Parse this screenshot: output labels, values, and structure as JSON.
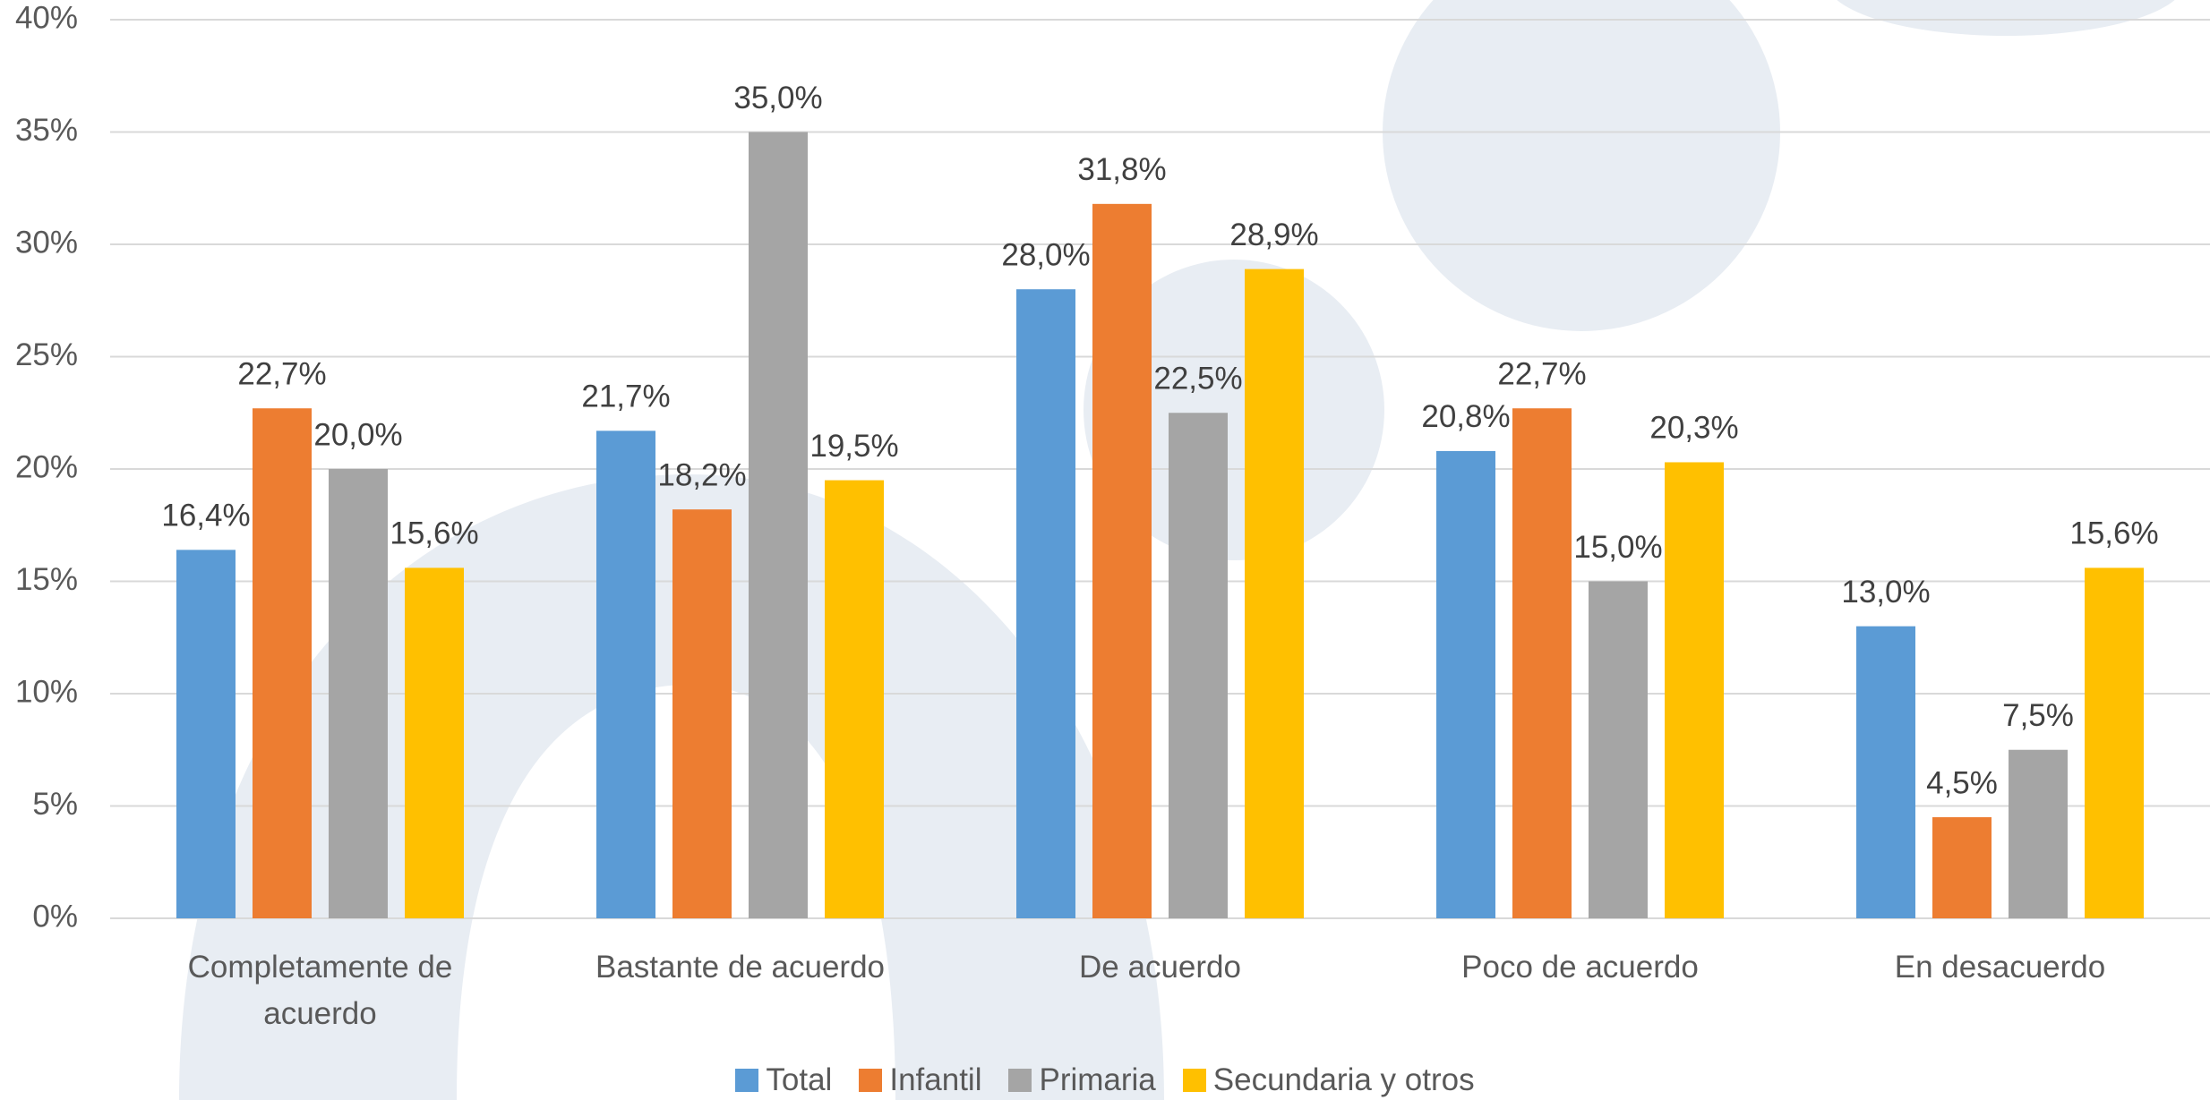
{
  "chart_data": {
    "type": "bar",
    "categories": [
      "Completamente de acuerdo",
      "Bastante de acuerdo",
      "De acuerdo",
      "Poco de acuerdo",
      "En desacuerdo"
    ],
    "series": [
      {
        "name": "Total",
        "color": "#5b9bd5",
        "values": [
          16.4,
          21.7,
          28.0,
          20.8,
          13.0
        ],
        "value_labels": [
          "16,4%",
          "21,7%",
          "28,0%",
          "20,8%",
          "13,0%"
        ]
      },
      {
        "name": "Infantil",
        "color": "#ed7d31",
        "values": [
          22.7,
          18.2,
          31.8,
          22.7,
          4.5
        ],
        "value_labels": [
          "22,7%",
          "18,2%",
          "31,8%",
          "22,7%",
          "4,5%"
        ]
      },
      {
        "name": "Primaria",
        "color": "#a5a5a5",
        "values": [
          20.0,
          35.0,
          22.5,
          15.0,
          7.5
        ],
        "value_labels": [
          "20,0%",
          "35,0%",
          "22,5%",
          "15,0%",
          "7,5%"
        ]
      },
      {
        "name": "Secundaria y otros",
        "color": "#ffc000",
        "values": [
          15.6,
          19.5,
          28.9,
          20.3,
          15.6
        ],
        "value_labels": [
          "15,6%",
          "19,5%",
          "28,9%",
          "20,3%",
          "15,6%"
        ]
      }
    ],
    "ylim": [
      0,
      40
    ],
    "yticks": [
      {
        "value": 0,
        "label": "0%"
      },
      {
        "value": 5,
        "label": "5%"
      },
      {
        "value": 10,
        "label": "10%"
      },
      {
        "value": 15,
        "label": "15%"
      },
      {
        "value": 20,
        "label": "20%"
      },
      {
        "value": 25,
        "label": "25%"
      },
      {
        "value": 30,
        "label": "30%"
      },
      {
        "value": 35,
        "label": "35%"
      },
      {
        "value": 40,
        "label": "40%"
      }
    ],
    "grid": true,
    "legend": "bottom"
  }
}
